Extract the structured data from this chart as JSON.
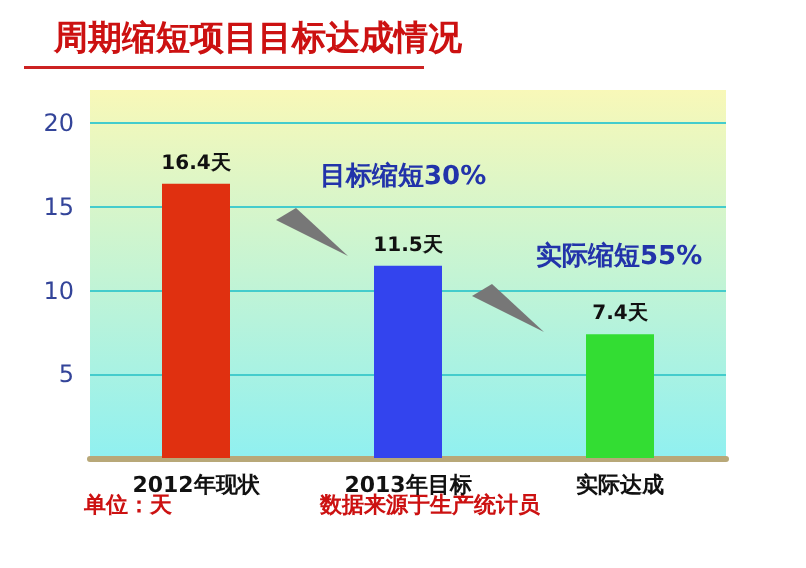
{
  "chart_data": {
    "type": "bar",
    "title": "周期缩短项目目标达成情况",
    "categories": [
      "2012年现状",
      "2013年目标",
      "实际达成"
    ],
    "values": [
      16.4,
      11.5,
      7.4
    ],
    "colors": [
      "#e03010",
      "#3344ee",
      "#33dd33"
    ],
    "value_labels": [
      "16.4天",
      "11.5天",
      "7.4天"
    ],
    "ylim": [
      0,
      22
    ],
    "yticks": [
      5,
      10,
      15,
      20
    ],
    "grid": "y",
    "annotations": [
      "目标缩短30%",
      "实际缩短55%",
      "单位：天",
      "数据来源于生产统计员"
    ]
  }
}
